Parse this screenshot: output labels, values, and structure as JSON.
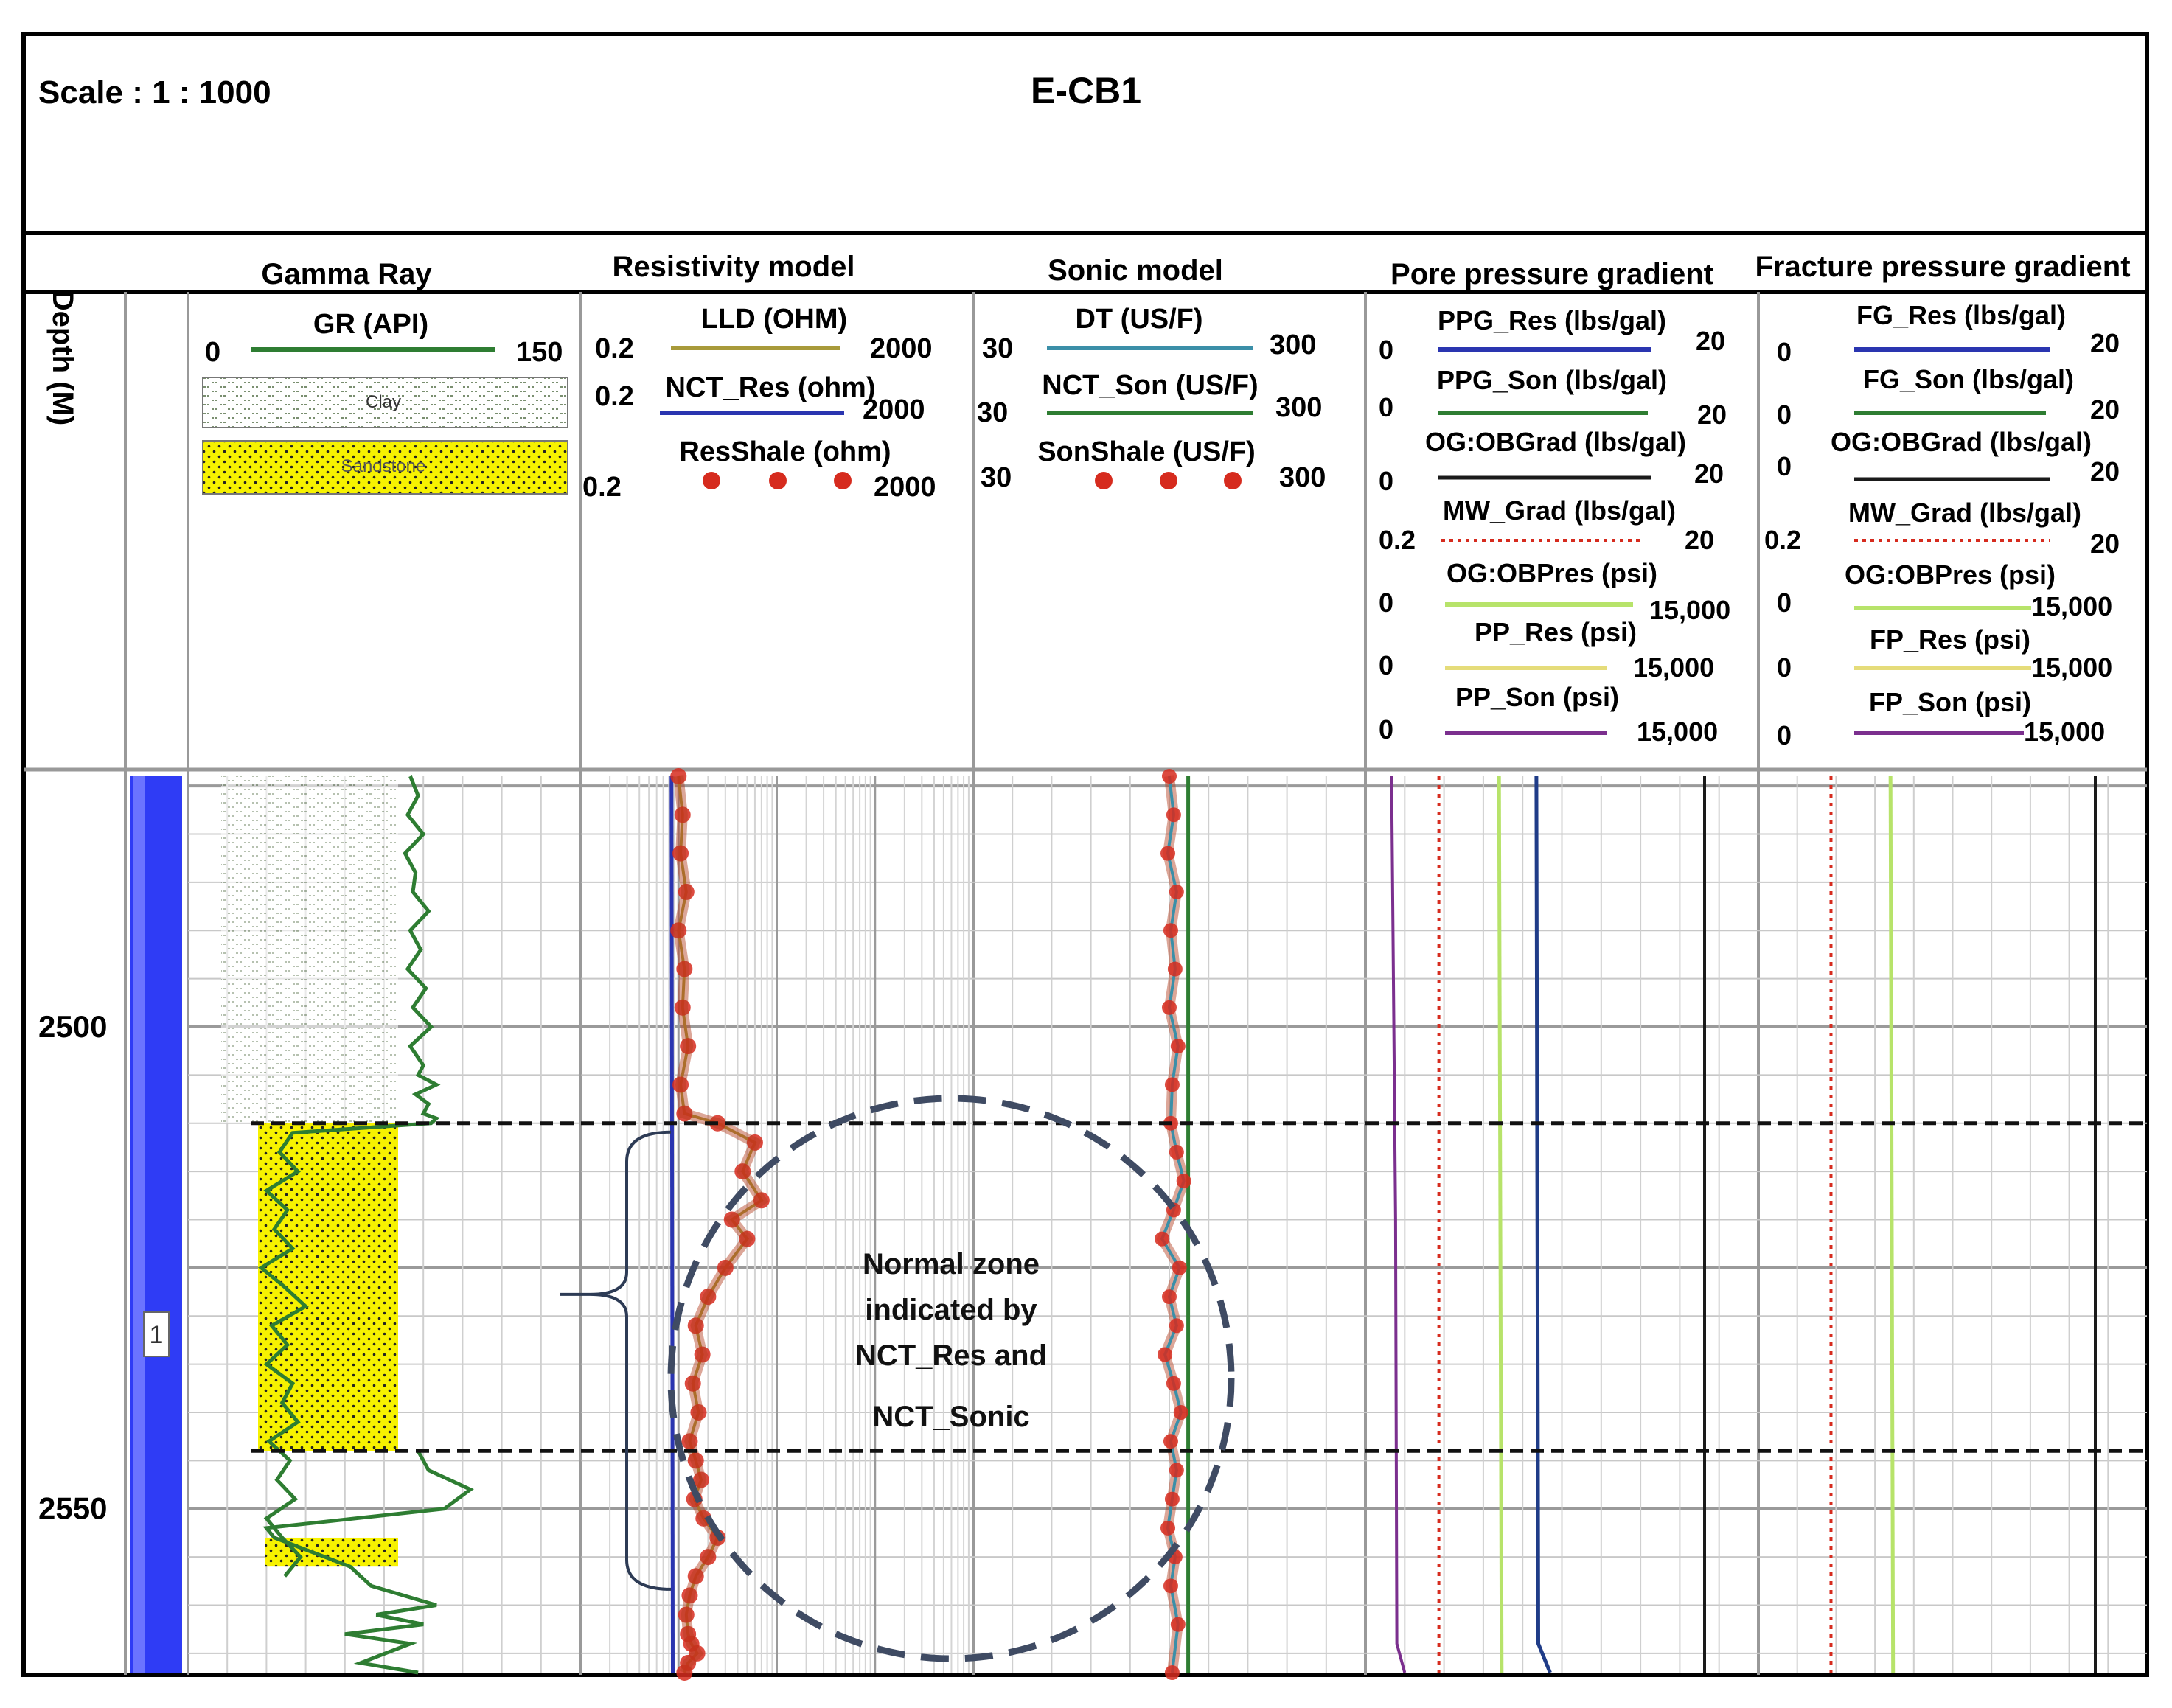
{
  "header": {
    "scale_label": "Scale : 1 : 1000",
    "well_name": "E-CB1"
  },
  "tracks": [
    {
      "id": "depth",
      "title": "Depth (M)"
    },
    {
      "id": "gamma",
      "title": "Gamma Ray"
    },
    {
      "id": "resistivity",
      "title": "Resistivity model"
    },
    {
      "id": "sonic",
      "title": "Sonic model"
    },
    {
      "id": "ppg",
      "title": "Pore pressure gradient"
    },
    {
      "id": "fg",
      "title": "Fracture pressure gradient"
    }
  ],
  "legend": {
    "gamma": {
      "curve": "GR (API)",
      "min": "0",
      "max": "150",
      "color": "#2e7d32",
      "clay": "Clay",
      "sandstone": "Sandstone"
    },
    "resistivity": [
      {
        "name": "LLD (OHM)",
        "min": "0.2",
        "max": "2000",
        "color": "#a89a3a",
        "style": "line"
      },
      {
        "name": "NCT_Res (ohm)",
        "min": "0.2",
        "max": "2000",
        "color": "#2a35b0",
        "style": "line"
      },
      {
        "name": "ResShale (ohm)",
        "min": "0.2",
        "max": "2000",
        "color": "#d62b1e",
        "style": "dots"
      }
    ],
    "sonic": [
      {
        "name": "DT (US/F)",
        "min": "30",
        "max": "300",
        "color": "#3b8fa8",
        "style": "line"
      },
      {
        "name": "NCT_Son (US/F)",
        "min": "30",
        "max": "300",
        "color": "#2e7d32",
        "style": "line"
      },
      {
        "name": "SonShale (US/F)",
        "min": "30",
        "max": "300",
        "color": "#d62b1e",
        "style": "dots"
      }
    ],
    "ppg": [
      {
        "name": "PPG_Res (lbs/gal)",
        "min": "0",
        "max": "20",
        "color": "#2a35b0",
        "style": "line"
      },
      {
        "name": "PPG_Son (lbs/gal)",
        "min": "0",
        "max": "20",
        "color": "#2e7d32",
        "style": "line"
      },
      {
        "name": "OG:OBGrad (lbs/gal)",
        "min": "0",
        "max": "20",
        "color": "#1a1a1a",
        "style": "line"
      },
      {
        "name": "MW_Grad (lbs/gal)",
        "min": "0.2",
        "max": "20",
        "color": "#d62b1e",
        "style": "dotted"
      },
      {
        "name": "OG:OBPres (psi)",
        "min": "0",
        "max": "15,000",
        "color": "#b7e36a",
        "style": "line"
      },
      {
        "name": "PP_Res (psi)",
        "min": "0",
        "max": "15,000",
        "color": "#e5dc7a",
        "style": "line"
      },
      {
        "name": "PP_Son (psi)",
        "min": "0",
        "max": "15,000",
        "color": "#7b2f8e",
        "style": "line"
      }
    ],
    "fg": [
      {
        "name": "FG_Res (lbs/gal)",
        "min": "0",
        "max": "20",
        "color": "#2a35b0",
        "style": "line"
      },
      {
        "name": "FG_Son (lbs/gal)",
        "min": "0",
        "max": "20",
        "color": "#2e7d32",
        "style": "line"
      },
      {
        "name": "OG:OBGrad (lbs/gal)",
        "min": "0",
        "max": "20",
        "color": "#1a1a1a",
        "style": "line"
      },
      {
        "name": "MW_Grad (lbs/gal)",
        "min": "0.2",
        "max": "20",
        "color": "#d62b1e",
        "style": "dotted"
      },
      {
        "name": "OG:OBPres (psi)",
        "min": "0",
        "max": "15,000",
        "color": "#b7e36a",
        "style": "line"
      },
      {
        "name": "FP_Res (psi)",
        "min": "0",
        "max": "15,000",
        "color": "#e5dc7a",
        "style": "line"
      },
      {
        "name": "FP_Son (psi)",
        "min": "0",
        "max": "15,000",
        "color": "#7b2f8e",
        "style": "line"
      }
    ]
  },
  "zone": {
    "label": "1",
    "top_m": 2510,
    "bottom_m": 2544
  },
  "annotation": [
    "Normal zone",
    "indicated by",
    "NCT_Res and",
    "NCT_Sonic"
  ],
  "chart_data": {
    "type": "line",
    "y_axis": {
      "label": "Depth (M)",
      "range": [
        2474,
        2567
      ],
      "ticks": [
        2500,
        2550
      ],
      "inverted": true
    },
    "grid": true,
    "series": [
      {
        "name": "GR (API)",
        "unit": "API",
        "range": [
          0,
          150
        ],
        "x": [
          85,
          88,
          84,
          90,
          83,
          87,
          86,
          92,
          85,
          89,
          84,
          91,
          86,
          93,
          85,
          90,
          88,
          95,
          87,
          92,
          90,
          95,
          93,
          40,
          35,
          42,
          30,
          38,
          33,
          40,
          28,
          37,
          45,
          32,
          38,
          30,
          40,
          36,
          42,
          31,
          39,
          34,
          41,
          30,
          36,
          43,
          37,
          88,
          92,
          108,
          98,
          30,
          33,
          62,
          70,
          95,
          72,
          90,
          60,
          85,
          66,
          88
        ],
        "y": [
          2474,
          2476,
          2478,
          2480,
          2482,
          2484,
          2486,
          2488,
          2490,
          2492,
          2494,
          2496,
          2498,
          2500,
          2502,
          2504,
          2505,
          2506,
          2507,
          2508,
          2509,
          2509.5,
          2510,
          2511,
          2513,
          2515,
          2517,
          2519,
          2521,
          2523,
          2525,
          2527,
          2529,
          2531,
          2533,
          2535,
          2537,
          2539,
          2541,
          2543,
          2545,
          2547,
          2549,
          2551,
          2553,
          2555,
          2557,
          2544,
          2546,
          2548,
          2550,
          2552,
          2553,
          2556,
          2558,
          2560,
          2561,
          2562,
          2563,
          2564,
          2566,
          2567
        ]
      },
      {
        "name": "LLD (OHM)",
        "unit": "ohm",
        "scale": "log",
        "range": [
          0.2,
          2000
        ],
        "x": [
          2.0,
          2.2,
          2.1,
          2.4,
          2.0,
          2.3,
          2.2,
          2.5,
          2.1,
          2.3,
          5,
          12,
          9,
          14,
          7,
          10,
          6,
          4,
          3,
          3.5,
          2.8,
          3.2,
          2.6,
          3.0,
          3.4,
          2.9,
          3.6,
          5,
          4,
          3,
          2.6,
          2.4,
          2.5,
          2.7,
          3.1,
          2.5,
          2.3
        ],
        "y": [
          2474,
          2478,
          2482,
          2486,
          2490,
          2494,
          2498,
          2502,
          2506,
          2509,
          2510,
          2512,
          2515,
          2518,
          2520,
          2522,
          2525,
          2528,
          2531,
          2534,
          2537,
          2540,
          2543,
          2545,
          2547,
          2549,
          2551,
          2553,
          2555,
          2557,
          2559,
          2561,
          2563,
          2564,
          2565,
          2566,
          2567
        ]
      },
      {
        "name": "NCT_Res (ohm)",
        "unit": "ohm",
        "scale": "log",
        "range": [
          0.2,
          2000
        ],
        "x": [
          1.7,
          1.75
        ],
        "y": [
          2474,
          2567
        ]
      },
      {
        "name": "DT (US/F)",
        "unit": "us/ft",
        "range": [
          30,
          300
        ],
        "x": [
          165,
          168,
          164,
          170,
          166,
          169,
          165,
          171,
          167,
          166,
          170,
          175,
          168,
          160,
          172,
          165,
          170,
          162,
          168,
          173,
          166,
          170,
          167,
          164,
          169,
          166,
          171,
          167
        ],
        "y": [
          2474,
          2478,
          2482,
          2486,
          2490,
          2494,
          2498,
          2502,
          2506,
          2510,
          2513,
          2516,
          2519,
          2522,
          2525,
          2528,
          2531,
          2534,
          2537,
          2540,
          2543,
          2546,
          2549,
          2552,
          2555,
          2558,
          2562,
          2567
        ]
      },
      {
        "name": "NCT_Son (US/F)",
        "unit": "us/ft",
        "range": [
          30,
          300
        ],
        "x": [
          178,
          178
        ],
        "y": [
          2474,
          2567
        ]
      },
      {
        "name": "PPG_Res (lbs/gal)",
        "unit": "lbs/gal",
        "range": [
          0,
          20
        ],
        "x": [
          8.7,
          8.75,
          8.8,
          9.4
        ],
        "y": [
          2474,
          2520,
          2564,
          2567
        ]
      },
      {
        "name": "MW_Grad (lbs/gal)",
        "unit": "lbs/gal",
        "range": [
          0.2,
          20
        ],
        "x": [
          3.9,
          3.9
        ],
        "y": [
          2474,
          2567
        ]
      },
      {
        "name": "PP_Son (psi)",
        "unit": "psi",
        "range": [
          0,
          15000
        ],
        "x": [
          1000,
          1150,
          1200,
          1500
        ],
        "y": [
          2474,
          2520,
          2564,
          2567
        ]
      },
      {
        "name": "OG:OBPres (psi)",
        "unit": "psi",
        "range": [
          0,
          15000
        ],
        "x": [
          5100,
          5200
        ],
        "y": [
          2474,
          2567
        ]
      }
    ]
  }
}
